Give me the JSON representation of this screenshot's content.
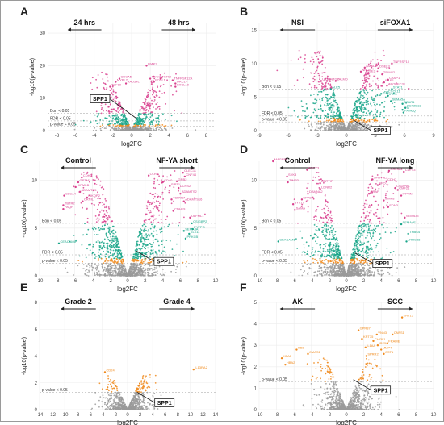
{
  "colors": {
    "sig_high": "#d9428f",
    "sig_mid": "#1aa68a",
    "sig_low": "#f08a1c",
    "nonsig": "#9a9a9a",
    "threshold_line": "#bdbdbd",
    "grid": "#ececec",
    "arrow": "#222222",
    "spp1_box": "#ffffff"
  },
  "chart_data": [
    {
      "panel": "A",
      "type": "scatter",
      "xlabel": "log2FC",
      "ylabel": "-log10(p-value)",
      "xlim": [
        -9,
        9
      ],
      "ylim": [
        0,
        33
      ],
      "xticks": [
        -8,
        -6,
        -4,
        -2,
        0,
        2,
        4,
        6,
        8
      ],
      "yticks": [
        0,
        10,
        20,
        30
      ],
      "left_header": "24 hrs",
      "right_header": "48 hrs",
      "thresholds": [
        {
          "label": "Bon < 0.05",
          "y": 5.3
        },
        {
          "label": "FDR < 0.05",
          "y": 3.0
        },
        {
          "label": "p-value < 0.05",
          "y": 1.3
        }
      ],
      "highlight": {
        "label": "SPP1",
        "x": 0.6,
        "y": 3.6
      },
      "genes": [
        {
          "text": "IRAK2",
          "x": 1.6,
          "y": 20.0
        },
        {
          "text": "CDCA5",
          "x": -1.3,
          "y": 16.0
        },
        {
          "text": "MYBL2",
          "x": -1.7,
          "y": 15.0
        },
        {
          "text": "RAD54L",
          "x": -0.6,
          "y": 14.5
        },
        {
          "text": "TCF19",
          "x": -2.3,
          "y": 13.5
        },
        {
          "text": "MYEOV",
          "x": 2.0,
          "y": 16.0
        },
        {
          "text": "TGFBI",
          "x": 3.1,
          "y": 16.0
        },
        {
          "text": "FOSL1",
          "x": 2.4,
          "y": 15.0
        },
        {
          "text": "TNFRSF12A",
          "x": 4.4,
          "y": 15.5
        },
        {
          "text": "ORC1F",
          "x": 4.7,
          "y": 14.5
        },
        {
          "text": "CXCL10",
          "x": 4.7,
          "y": 13.5
        }
      ]
    },
    {
      "panel": "B",
      "type": "scatter",
      "xlabel": "log2FC",
      "ylabel": "-log10(p-value)",
      "xlim": [
        -9,
        9
      ],
      "ylim": [
        0,
        16
      ],
      "xticks": [
        -9,
        -6,
        -3,
        0,
        3,
        6,
        9
      ],
      "yticks": [
        0,
        5,
        10,
        15
      ],
      "left_header": "NSI",
      "right_header": "siFOXA1",
      "thresholds": [
        {
          "label": "Bon < 0.05",
          "y": 6.2
        },
        {
          "label": "FDR < 0.05",
          "y": 2.2
        },
        {
          "label": "p-value < 0.05",
          "y": 1.3
        }
      ],
      "highlight": {
        "label": "SPP1",
        "x": 0.7,
        "y": 1.6
      },
      "genes": [
        {
          "text": "TNFRSF10",
          "x": 4.7,
          "y": 10.0
        },
        {
          "text": "SMAD2",
          "x": 1.9,
          "y": 9.4
        },
        {
          "text": "DSEL3",
          "x": 3.3,
          "y": 9.3
        },
        {
          "text": "NRGF",
          "x": 1.5,
          "y": 8.8
        },
        {
          "text": "DSE2",
          "x": 2.0,
          "y": 8.6
        },
        {
          "text": "TRIM22",
          "x": 3.7,
          "y": 8.4
        },
        {
          "text": "CASP1",
          "x": 4.3,
          "y": 7.6
        },
        {
          "text": "IL1R1",
          "x": 3.9,
          "y": 7.2
        },
        {
          "text": "APOBEC3F",
          "x": 4.2,
          "y": 6.7
        },
        {
          "text": "STAT1",
          "x": 4.7,
          "y": 6.2
        },
        {
          "text": "CXCL11",
          "x": 4.2,
          "y": 5.6
        },
        {
          "text": "MX1",
          "x": 3.6,
          "y": 5.5
        },
        {
          "text": "IFIT3",
          "x": 4.3,
          "y": 5.2
        },
        {
          "text": "SEMA5A",
          "x": 4.6,
          "y": 4.4
        },
        {
          "text": "CSAR1",
          "x": 5.8,
          "y": 4.0
        },
        {
          "text": "UGT2B11",
          "x": 6.1,
          "y": 3.4
        },
        {
          "text": "IFI6",
          "x": 5.8,
          "y": 3.1
        },
        {
          "text": "FAM6Q",
          "x": 5.9,
          "y": 2.7
        },
        {
          "text": "UTRN",
          "x": -2.6,
          "y": 7.4
        },
        {
          "text": "SNTG2",
          "x": -2.0,
          "y": 7.4
        },
        {
          "text": "PALMD",
          "x": -1.1,
          "y": 7.4
        },
        {
          "text": "ALK5",
          "x": -1.6,
          "y": 6.2
        }
      ]
    },
    {
      "panel": "C",
      "type": "scatter",
      "xlabel": "log2FC",
      "ylabel": "-log10(p-value)",
      "xlim": [
        -10,
        10
      ],
      "ylim": [
        0,
        12
      ],
      "xticks": [
        -10,
        -8,
        -6,
        -4,
        -2,
        0,
        2,
        4,
        6,
        8,
        10
      ],
      "yticks": [
        0,
        5,
        10
      ],
      "left_header": "Control",
      "right_header": "NF-YA short",
      "thresholds": [
        {
          "label": "Bon < 0.05",
          "y": 5.5
        },
        {
          "label": "FDR < 0.05",
          "y": 2.2
        },
        {
          "label": "p-value < 0.05",
          "y": 1.3
        }
      ],
      "highlight": {
        "label": "SPP1",
        "x": 1.0,
        "y": 2.6
      },
      "genes": [
        {
          "text": "CDH3",
          "x": -5.2,
          "y": 10.3
        },
        {
          "text": "GSTM1",
          "x": -5.6,
          "y": 9.8
        },
        {
          "text": "HIPMI-B",
          "x": -5.9,
          "y": 9.3
        },
        {
          "text": "ADAMTS5",
          "x": -5.4,
          "y": 8.8
        },
        {
          "text": "CLCA4",
          "x": -7.2,
          "y": 8.4
        },
        {
          "text": "PIKQP2",
          "x": -4.6,
          "y": 8.2
        },
        {
          "text": "TBTR2",
          "x": -7.3,
          "y": 7.4
        },
        {
          "text": "PAQR",
          "x": -7.3,
          "y": 7.0
        },
        {
          "text": "CRNIL",
          "x": -5.1,
          "y": 7.8
        },
        {
          "text": "CEACAM6",
          "x": -7.8,
          "y": 3.4
        },
        {
          "text": "OLR1",
          "x": 2.4,
          "y": 10.5
        },
        {
          "text": "CLEC11",
          "x": 6.3,
          "y": 10.8
        },
        {
          "text": "CNF44",
          "x": 6.5,
          "y": 10.4
        },
        {
          "text": "CD40",
          "x": 4.0,
          "y": 9.8
        },
        {
          "text": "GRB2",
          "x": 5.6,
          "y": 9.9
        },
        {
          "text": "SIRT1",
          "x": 4.8,
          "y": 9.4
        },
        {
          "text": "DCHS2",
          "x": 5.8,
          "y": 9.2
        },
        {
          "text": "ADAMTS2",
          "x": 6.0,
          "y": 8.6
        },
        {
          "text": "TSPAN7",
          "x": 5.0,
          "y": 8.0
        },
        {
          "text": "ADAMTS16",
          "x": 6.4,
          "y": 7.8
        },
        {
          "text": "CDH19",
          "x": 5.2,
          "y": 6.8
        },
        {
          "text": "OLFML1",
          "x": 7.1,
          "y": 6.1
        },
        {
          "text": "CSIGBP2",
          "x": 7.3,
          "y": 5.5
        },
        {
          "text": "SEMA3A",
          "x": 6.4,
          "y": 4.7
        },
        {
          "text": "KLK11",
          "x": 7.0,
          "y": 4.4
        },
        {
          "text": "PRKCB",
          "x": 6.6,
          "y": 3.9
        },
        {
          "text": "PYFPG",
          "x": 7.4,
          "y": 4.9
        }
      ]
    },
    {
      "panel": "D",
      "type": "scatter",
      "xlabel": "log2FC",
      "ylabel": "-log10(p-value)",
      "xlim": [
        -10,
        10
      ],
      "ylim": [
        0,
        12
      ],
      "xticks": [
        -10,
        -8,
        -6,
        -4,
        -2,
        0,
        2,
        4,
        6,
        8,
        10
      ],
      "yticks": [
        0,
        5,
        10
      ],
      "left_header": "Control",
      "right_header": "NF-YA long",
      "thresholds": [
        {
          "label": "Bon < 0.05",
          "y": 5.5
        },
        {
          "label": "FDR < 0.05",
          "y": 2.2
        },
        {
          "label": "p-value < 0.05",
          "y": 1.3
        }
      ],
      "highlight": {
        "label": "SPP1",
        "x": 1.0,
        "y": 2.4
      },
      "genes": [
        {
          "text": "MAGEB6",
          "x": -8.4,
          "y": 12.0
        },
        {
          "text": "ADCY3",
          "x": -4.5,
          "y": 11.1
        },
        {
          "text": "SYK3",
          "x": -6.8,
          "y": 10.4
        },
        {
          "text": "DNTTIP",
          "x": -3.0,
          "y": 9.7
        },
        {
          "text": "TIMP3",
          "x": -6.7,
          "y": 9.8
        },
        {
          "text": "LDNR2",
          "x": -3.0,
          "y": 9.1
        },
        {
          "text": "DAMNA2",
          "x": -4.4,
          "y": 8.6
        },
        {
          "text": "SPP2",
          "x": -5.1,
          "y": 8.0
        },
        {
          "text": "SYT17",
          "x": -6.1,
          "y": 7.5
        },
        {
          "text": "SAMA",
          "x": -5.9,
          "y": 6.9
        },
        {
          "text": "CEACAM6",
          "x": -7.8,
          "y": 3.6
        },
        {
          "text": "COL3A1",
          "x": 4.9,
          "y": 11.0
        },
        {
          "text": "CNF43",
          "x": 6.6,
          "y": 10.9
        },
        {
          "text": "SPRY4L2",
          "x": 3.0,
          "y": 10.1
        },
        {
          "text": "CDH7",
          "x": 4.6,
          "y": 9.9
        },
        {
          "text": "SFCC",
          "x": 3.6,
          "y": 9.5
        },
        {
          "text": "CSDIPAL",
          "x": 5.6,
          "y": 9.2
        },
        {
          "text": "CMF21",
          "x": 5.9,
          "y": 9.0
        },
        {
          "text": "CRAF",
          "x": 2.6,
          "y": 8.6
        },
        {
          "text": "ITPRN",
          "x": 6.3,
          "y": 8.4
        },
        {
          "text": "MMP8",
          "x": 4.3,
          "y": 7.9
        },
        {
          "text": "EDN3",
          "x": 4.8,
          "y": 7.2
        },
        {
          "text": "SEMA3E",
          "x": 6.7,
          "y": 6.1
        },
        {
          "text": "SEMA4E",
          "x": 6.3,
          "y": 5.4
        },
        {
          "text": "THBS4",
          "x": 7.1,
          "y": 4.4
        },
        {
          "text": "LRRC38",
          "x": 6.9,
          "y": 3.6
        }
      ]
    },
    {
      "panel": "E",
      "type": "scatter",
      "xlabel": "log2FC",
      "ylabel": "-log10(p-value)",
      "xlim": [
        -14,
        14
      ],
      "ylim": [
        0,
        8
      ],
      "xticks": [
        -14,
        -12,
        -10,
        -8,
        -6,
        -4,
        -2,
        0,
        2,
        4,
        6,
        8,
        10,
        12,
        14
      ],
      "yticks": [
        0,
        2,
        4,
        6,
        8
      ],
      "left_header": "Grade 2",
      "right_header": "Grade 4",
      "thresholds": [
        {
          "label": "p-value < 0.05",
          "y": 1.3
        }
      ],
      "highlight": {
        "label": "SPP1",
        "x": 1.5,
        "y": 1.3
      },
      "genes": [
        {
          "text": "CD24",
          "x": -3.6,
          "y": 2.8
        },
        {
          "text": "IL13RA2",
          "x": 10.5,
          "y": 3.0
        }
      ]
    },
    {
      "panel": "F",
      "type": "scatter",
      "xlabel": "log2FC",
      "ylabel": "-log10(p-value)",
      "xlim": [
        -10,
        10
      ],
      "ylim": [
        0,
        5
      ],
      "xticks": [
        -10,
        -8,
        -6,
        -4,
        -2,
        0,
        2,
        4,
        6,
        8,
        10
      ],
      "yticks": [
        0,
        1,
        2,
        3,
        4,
        5
      ],
      "left_header": "AK",
      "right_header": "SCC",
      "thresholds": [
        {
          "label": "p-value < 0.05",
          "y": 1.3
        }
      ],
      "highlight": {
        "label": "SPP1",
        "x": 0.8,
        "y": 1.4
      },
      "genes": [
        {
          "text": "KRT13",
          "x": 6.4,
          "y": 4.3
        },
        {
          "text": "GPR87",
          "x": 1.4,
          "y": 3.7
        },
        {
          "text": "VNN3",
          "x": 3.5,
          "y": 3.5
        },
        {
          "text": "CHI3L1",
          "x": 3.1,
          "y": 3.2
        },
        {
          "text": "CNFS1",
          "x": 5.3,
          "y": 3.5
        },
        {
          "text": "IRS5",
          "x": 3.6,
          "y": 3.0
        },
        {
          "text": "CST1",
          "x": 4.3,
          "y": 2.6
        },
        {
          "text": "FRAME",
          "x": 4.7,
          "y": 3.1
        },
        {
          "text": "MMP4",
          "x": 4.0,
          "y": 2.8
        },
        {
          "text": "IL1AA",
          "x": 2.2,
          "y": 2.9
        },
        {
          "text": "SPRR2",
          "x": 2.3,
          "y": 2.5
        },
        {
          "text": "KRT35",
          "x": 1.8,
          "y": 3.3
        },
        {
          "text": "HBB",
          "x": -5.7,
          "y": 2.8
        },
        {
          "text": "CMAS1",
          "x": -4.4,
          "y": 2.6
        },
        {
          "text": "HBA1",
          "x": -7.4,
          "y": 2.4
        },
        {
          "text": "HBA2",
          "x": -7.0,
          "y": 2.1
        }
      ]
    }
  ]
}
